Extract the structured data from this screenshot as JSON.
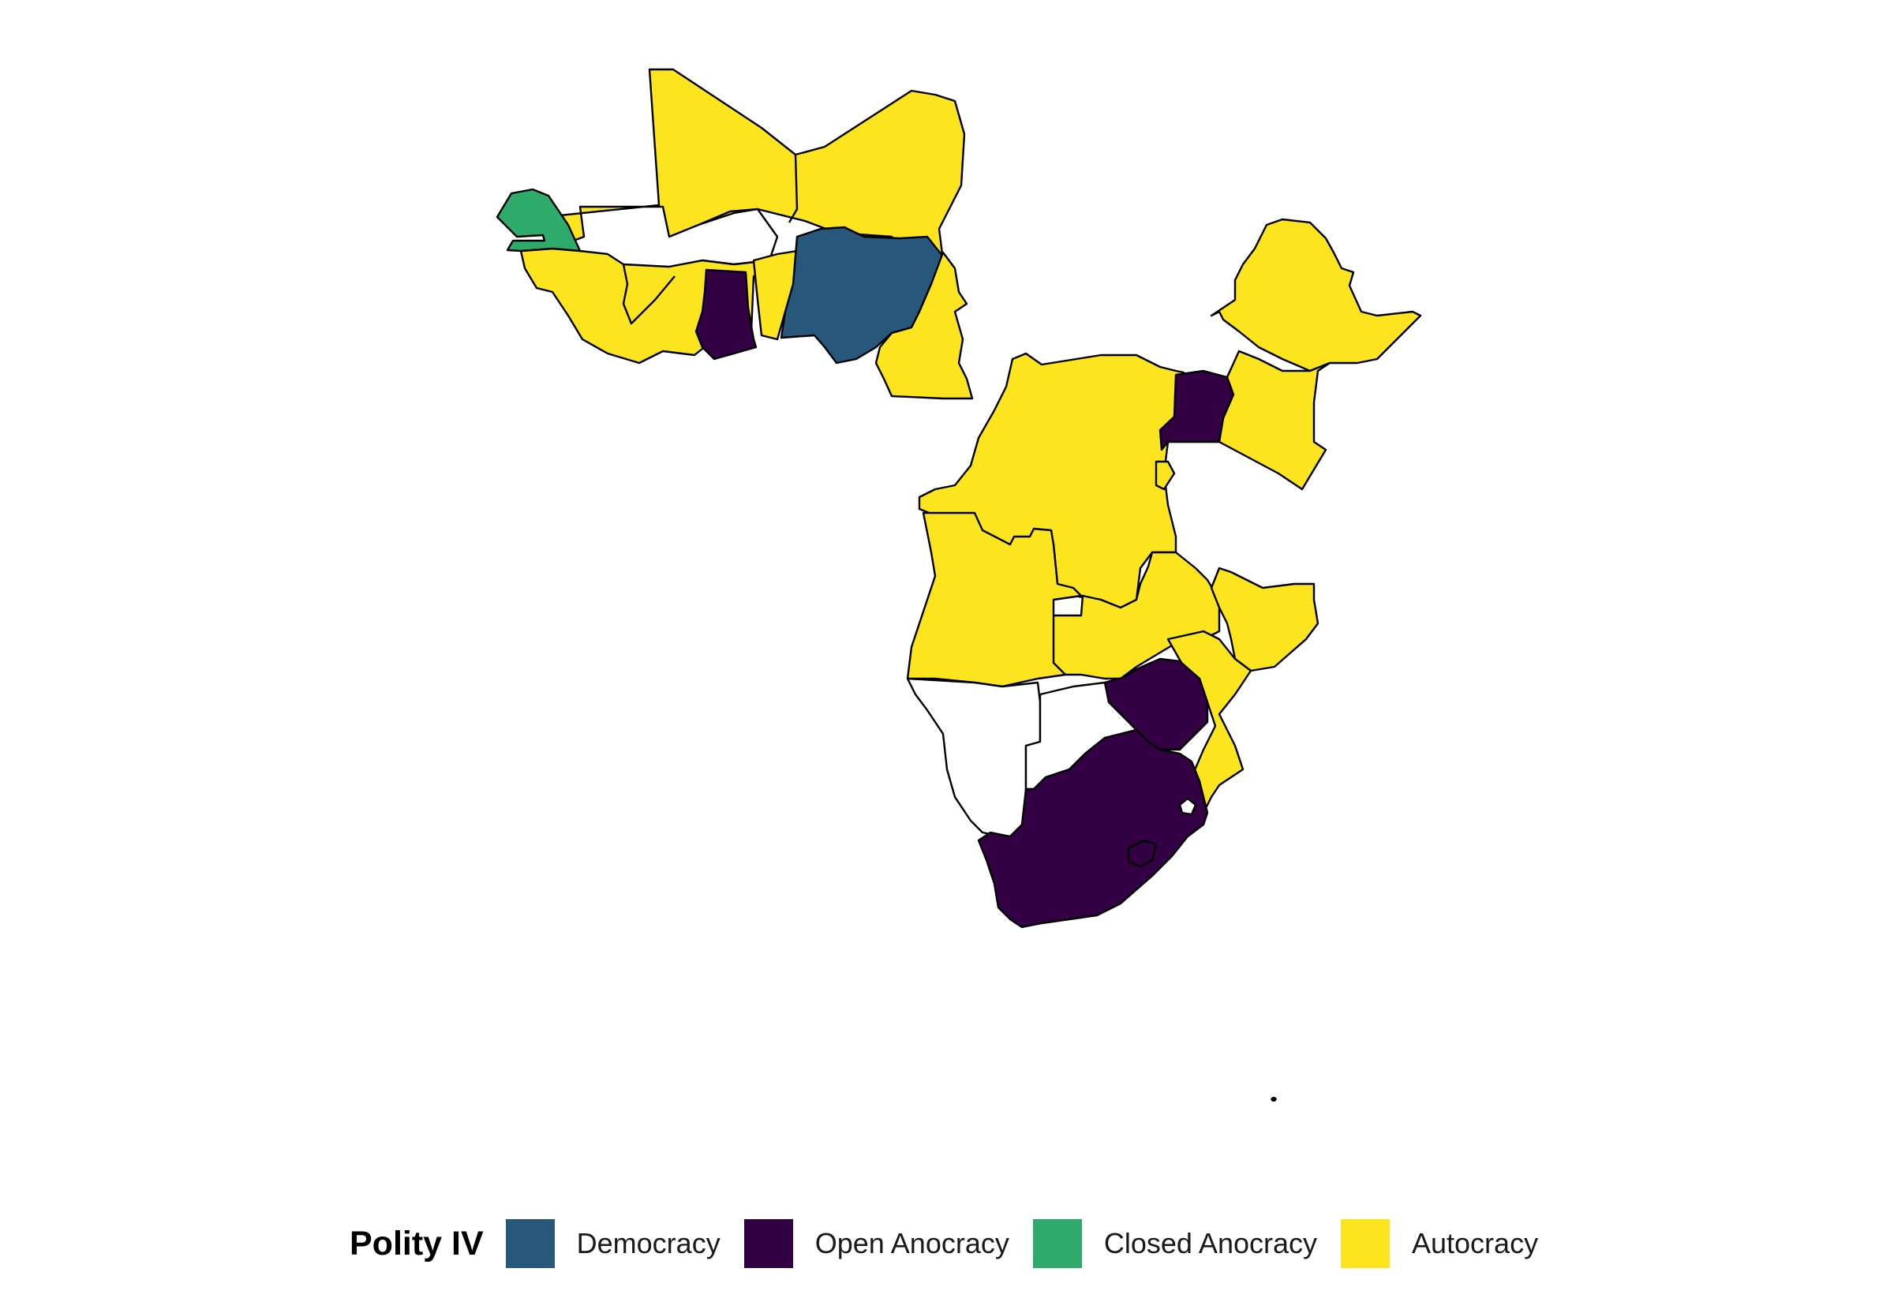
{
  "legend": {
    "title": "Polity IV",
    "categories": [
      {
        "label": "Democracy",
        "color": "#27577a"
      },
      {
        "label": "Open Anocracy",
        "color": "#330044"
      },
      {
        "label": "Closed Anocracy",
        "color": "#2eaa6a"
      },
      {
        "label": "Autocracy",
        "color": "#fce51f"
      }
    ]
  },
  "no_data_color": "#ffffff",
  "border_color": "#000000"
}
